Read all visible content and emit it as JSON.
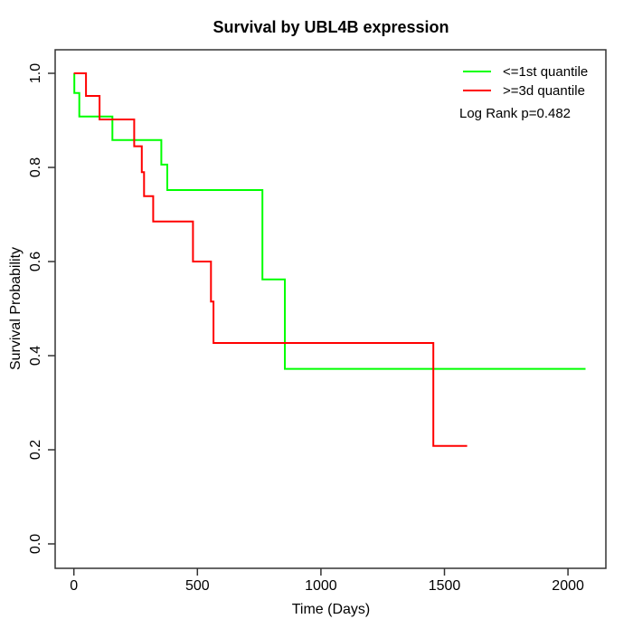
{
  "chart_data": {
    "type": "line",
    "subtype": "kaplan_meier_step",
    "title": "Survival by UBL4B expression",
    "xlabel": "Time (Days)",
    "ylabel": "Survival Probability",
    "xlim": [
      0,
      2150
    ],
    "ylim": [
      0.0,
      1.0
    ],
    "x_ticks": [
      0,
      500,
      1000,
      1500,
      2000
    ],
    "y_tick_labels": [
      "0.0",
      "0.2",
      "0.4",
      "0.6",
      "0.8",
      "1.0"
    ],
    "grid": false,
    "legend_position": "top-right",
    "annotation": "Log Rank p=0.482",
    "series": [
      {
        "name": "<=1st quantile",
        "color": "#00FF00",
        "end_time": 2071,
        "steps": [
          [
            0,
            1.0
          ],
          [
            2,
            0.958
          ],
          [
            22,
            0.908
          ],
          [
            156,
            0.858
          ],
          [
            354,
            0.806
          ],
          [
            378,
            0.752
          ],
          [
            763,
            0.562
          ],
          [
            854,
            0.372
          ]
        ]
      },
      {
        "name": ">=3d quantile",
        "color": "#FF0000",
        "end_time": 1592,
        "steps": [
          [
            0,
            1.0
          ],
          [
            49,
            0.952
          ],
          [
            104,
            0.902
          ],
          [
            244,
            0.845
          ],
          [
            275,
            0.79
          ],
          [
            284,
            0.739
          ],
          [
            321,
            0.685
          ],
          [
            482,
            0.6
          ],
          [
            555,
            0.515
          ],
          [
            565,
            0.427
          ],
          [
            1455,
            0.208
          ]
        ]
      }
    ]
  }
}
